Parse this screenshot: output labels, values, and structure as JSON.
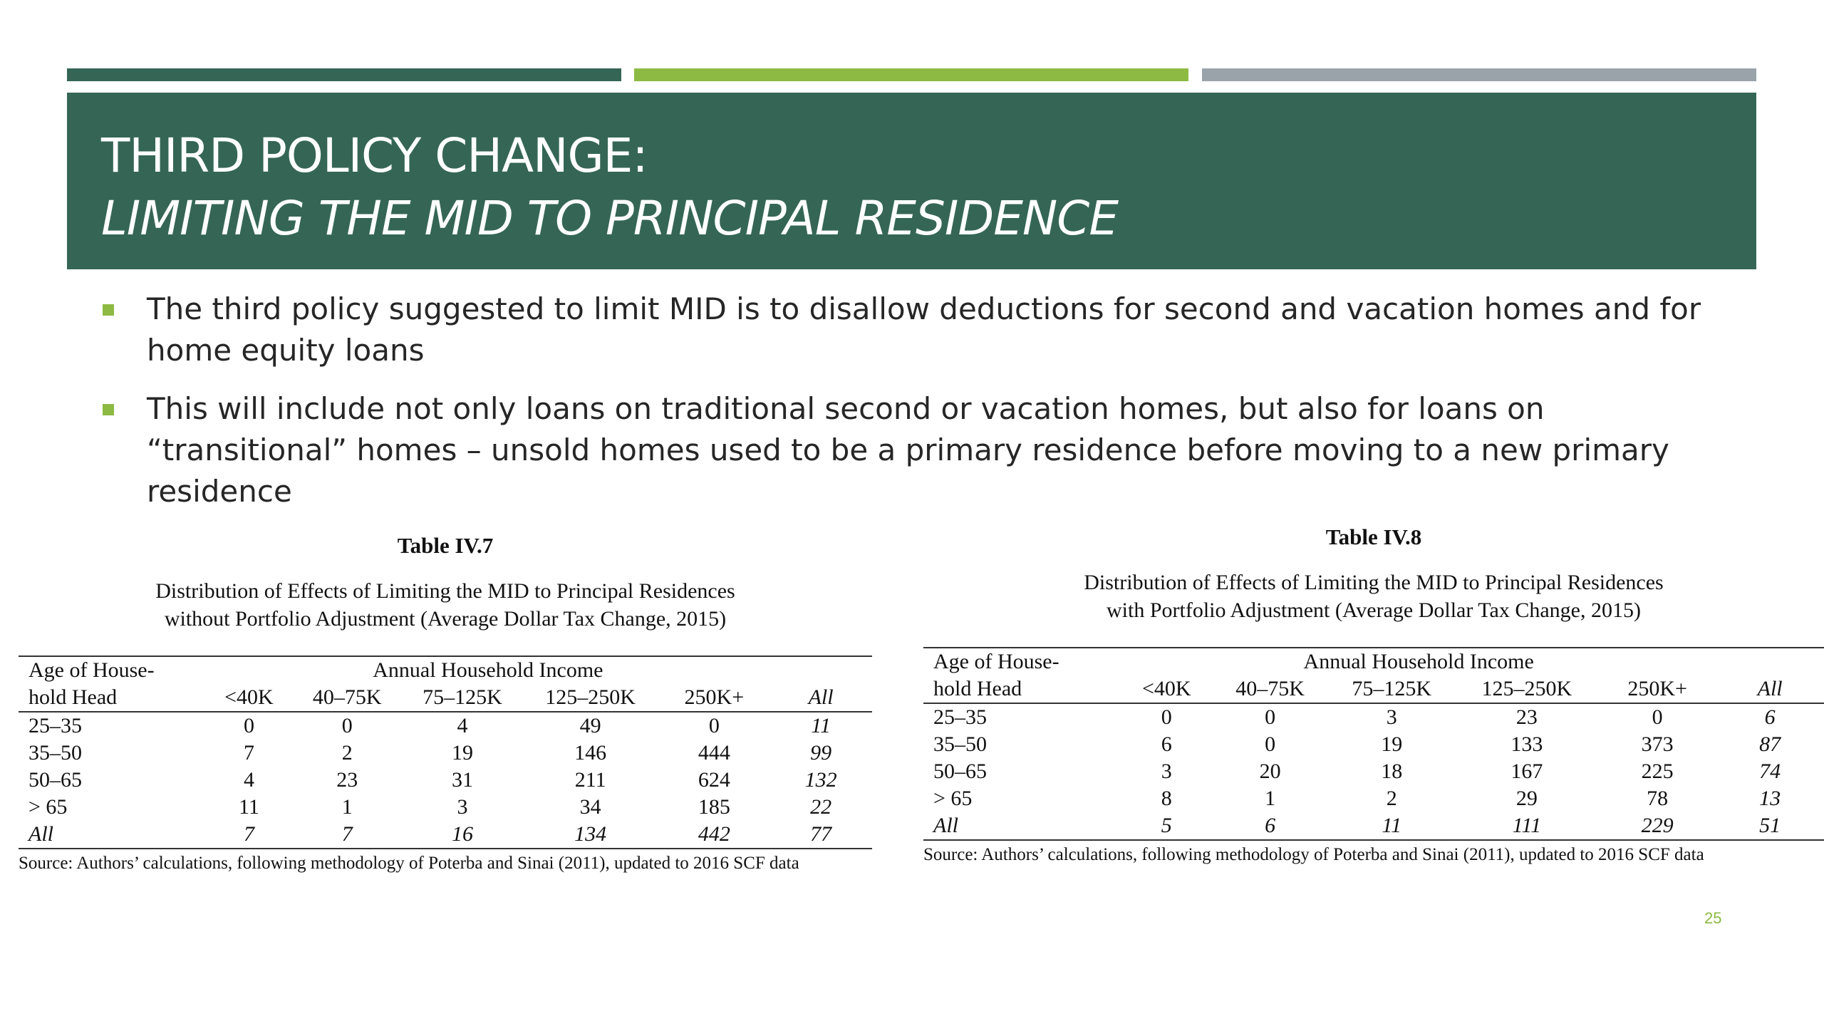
{
  "slide": {
    "title_line1": "THIRD POLICY CHANGE:",
    "title_line2": "LIMITING THE MID TO PRINCIPAL RESIDENCE",
    "accent_colors": [
      "#356655",
      "#8dba43",
      "#9aa3aa"
    ],
    "page_number": "25"
  },
  "bullets": [
    "The third policy suggested to limit MID is to disallow deductions for second and vacation homes and for home equity loans",
    "This will include not only loans on traditional second or vacation homes, but also for loans on “transitional” homes – unsold homes used to be a primary residence before moving to a new primary residence"
  ],
  "table1": {
    "caption": "Table IV.7",
    "subtitle_line1": "Distribution of Effects of Limiting the MID to Principal Residences",
    "subtitle_line2": "without Portfolio Adjustment (Average Dollar Tax Change, 2015)",
    "age_header_line1": "Age of House-",
    "age_header_line2": "hold Head",
    "income_header": "Annual Household Income",
    "columns": [
      "<40K",
      "40–75K",
      "75–125K",
      "125–250K",
      "250K+",
      "All"
    ],
    "rows": [
      {
        "label": "25–35",
        "values": [
          "0",
          "0",
          "4",
          "49",
          "0",
          "11"
        ]
      },
      {
        "label": "35–50",
        "values": [
          "7",
          "2",
          "19",
          "146",
          "444",
          "99"
        ]
      },
      {
        "label": "50–65",
        "values": [
          "4",
          "23",
          "31",
          "211",
          "624",
          "132"
        ]
      },
      {
        "label": "> 65",
        "values": [
          "11",
          "1",
          "3",
          "34",
          "185",
          "22"
        ]
      },
      {
        "label": "All",
        "values": [
          "7",
          "7",
          "16",
          "134",
          "442",
          "77"
        ]
      }
    ],
    "source": "Source: Authors’ calculations, following methodology of Poterba and Sinai (2011), updated to 2016 SCF data"
  },
  "table2": {
    "caption": "Table IV.8",
    "subtitle_line1": "Distribution of Effects of Limiting the MID to Principal Residences",
    "subtitle_line2": "with Portfolio Adjustment (Average Dollar Tax Change, 2015)",
    "age_header_line1": "Age of House-",
    "age_header_line2": "hold Head",
    "income_header": "Annual Household Income",
    "columns": [
      "<40K",
      "40–75K",
      "75–125K",
      "125–250K",
      "250K+",
      "All"
    ],
    "rows": [
      {
        "label": "25–35",
        "values": [
          "0",
          "0",
          "3",
          "23",
          "0",
          "6"
        ]
      },
      {
        "label": "35–50",
        "values": [
          "6",
          "0",
          "19",
          "133",
          "373",
          "87"
        ]
      },
      {
        "label": "50–65",
        "values": [
          "3",
          "20",
          "18",
          "167",
          "225",
          "74"
        ]
      },
      {
        "label": "> 65",
        "values": [
          "8",
          "1",
          "2",
          "29",
          "78",
          "13"
        ]
      },
      {
        "label": "All",
        "values": [
          "5",
          "6",
          "11",
          "111",
          "229",
          "51"
        ]
      }
    ],
    "source": "Source: Authors’ calculations, following methodology of Poterba and Sinai (2011), updated to 2016 SCF data"
  }
}
